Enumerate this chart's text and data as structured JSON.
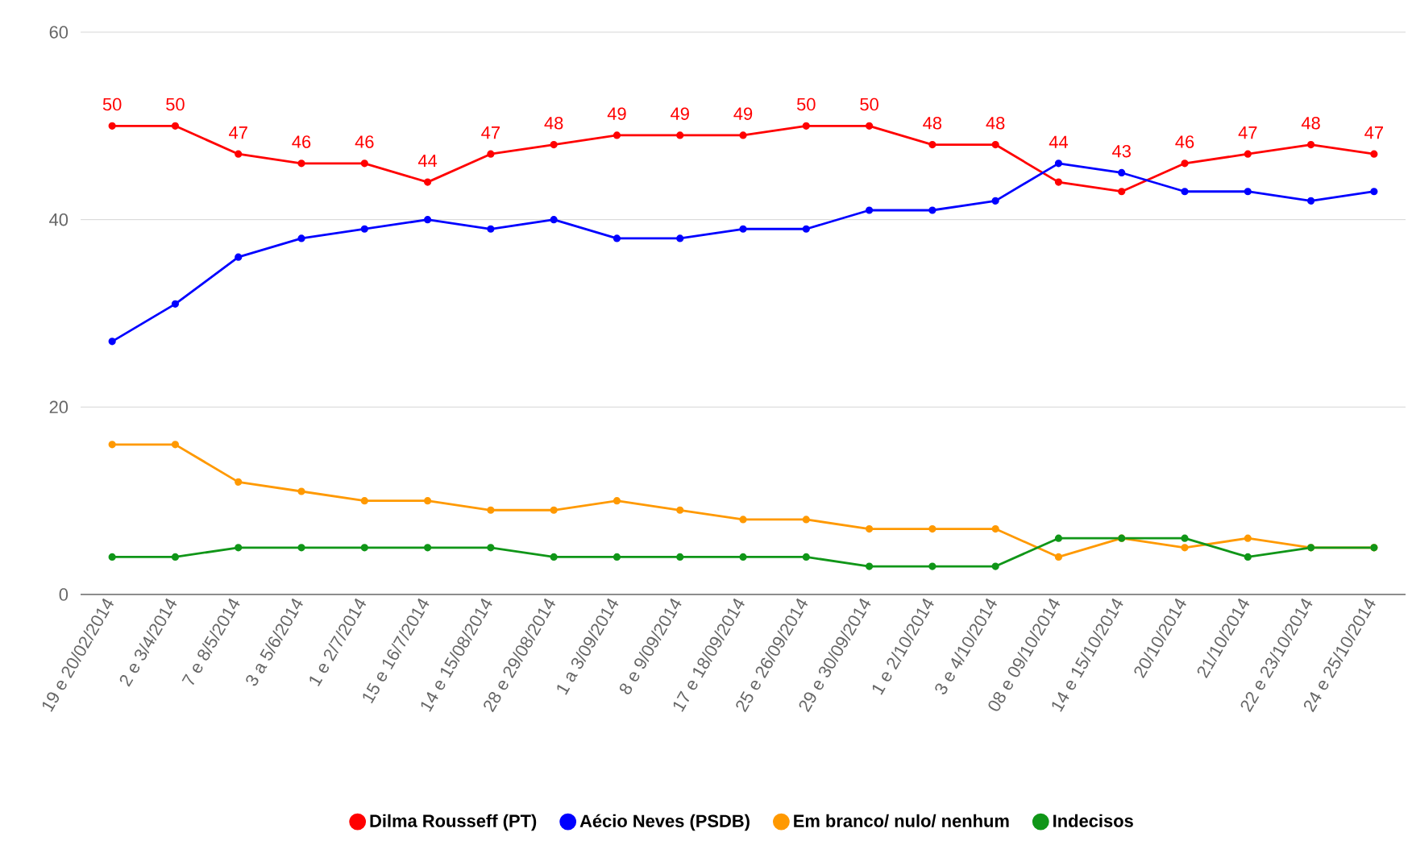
{
  "chart_data": {
    "type": "line",
    "categories": [
      "19 e 20/02/2014",
      "2 e 3/4/2014",
      "7 e 8/5/2014",
      "3 a 5/6/2014",
      "1 e 2/7/2014",
      "15 e 16/7/2014",
      "14 e 15/08/2014",
      "28 e 29/08/2014",
      "1 a 3/09/2014",
      "8 e 9/09/2014",
      "17 e 18/09/2014",
      "25 e 26/09/2014",
      "29 e 30/09/2014",
      "1 e 2/10/2014",
      "3 e 4/10/2014",
      "08 e 09/10/2014",
      "14 e 15/10/2014",
      "20/10/2014",
      "21/10/2014",
      "22 e 23/10/2014",
      "24 e 25/10/2014"
    ],
    "series": [
      {
        "name": "Dilma Rousseff (PT)",
        "color": "#ff0000",
        "values": [
          50,
          50,
          47,
          46,
          46,
          44,
          47,
          48,
          49,
          49,
          49,
          50,
          50,
          48,
          48,
          44,
          43,
          46,
          47,
          48,
          47
        ],
        "value_labels": [
          "50",
          "50",
          "47",
          "46",
          "46",
          "44",
          "47",
          "48",
          "49",
          "49",
          "49",
          "50",
          "50",
          "48",
          "48",
          "44",
          "43",
          "46",
          "47",
          "48",
          "47"
        ]
      },
      {
        "name": "Aécio Neves (PSDB)",
        "color": "#0000ff",
        "values": [
          27,
          31,
          36,
          38,
          39,
          40,
          39,
          40,
          38,
          38,
          39,
          39,
          41,
          41,
          42,
          46,
          45,
          43,
          43,
          42,
          43
        ]
      },
      {
        "name": "Em branco/ nulo/ nenhum",
        "color": "#ff9900",
        "values": [
          16,
          16,
          12,
          11,
          10,
          10,
          9,
          9,
          10,
          9,
          8,
          8,
          7,
          7,
          7,
          4,
          6,
          5,
          6,
          5,
          5
        ]
      },
      {
        "name": "Indecisos",
        "color": "#109618",
        "values": [
          4,
          4,
          5,
          5,
          5,
          5,
          5,
          4,
          4,
          4,
          4,
          4,
          3,
          3,
          3,
          6,
          6,
          6,
          4,
          5,
          5
        ]
      }
    ],
    "ylim": [
      0,
      60
    ],
    "yticks": [
      0,
      20,
      40,
      60
    ],
    "grid": "y",
    "legend": "bottom",
    "marker": "circle",
    "line_style": "solid"
  }
}
